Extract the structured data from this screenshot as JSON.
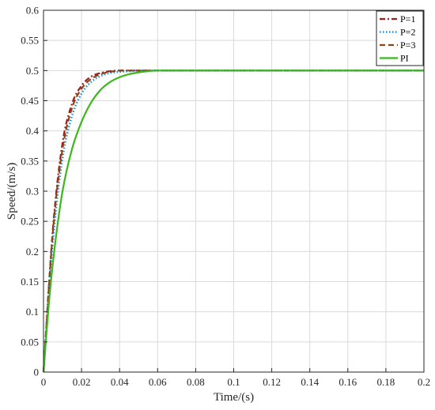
{
  "chart_data": {
    "type": "line",
    "xlabel": "Time/(s)",
    "ylabel": "Speed/(m/s)",
    "xlim": [
      0,
      0.2
    ],
    "ylim": [
      0,
      0.6
    ],
    "xticks": [
      0,
      0.02,
      0.04,
      0.06,
      0.08,
      0.1,
      0.12,
      0.14,
      0.16,
      0.18,
      0.2
    ],
    "xtick_labels": [
      "0",
      "0.02",
      "0.04",
      "0.06",
      "0.08",
      "0.1",
      "0.12",
      "0.14",
      "0.16",
      "0.18",
      "0.2"
    ],
    "yticks": [
      0,
      0.05,
      0.1,
      0.15,
      0.2,
      0.25,
      0.3,
      0.35,
      0.4,
      0.45,
      0.5,
      0.55,
      0.6
    ],
    "ytick_labels": [
      "0",
      "0.05",
      "0.1",
      "0.15",
      "0.2",
      "0.25",
      "0.3",
      "0.35",
      "0.4",
      "0.45",
      "0.5",
      "0.55",
      "0.6"
    ],
    "grid": true,
    "legend_position": "top-right",
    "series": [
      {
        "name": "P=1",
        "color": "#a31a1a",
        "dash": "dashdot",
        "x": [
          0,
          0.005,
          0.01,
          0.015,
          0.02,
          0.025,
          0.03,
          0.035,
          0.04,
          0.045,
          0.05,
          0.06,
          0.07,
          0.08,
          0.1,
          0.12,
          0.15,
          0.2
        ],
        "y": [
          0,
          0.24,
          0.38,
          0.445,
          0.475,
          0.49,
          0.496,
          0.499,
          0.5,
          0.5,
          0.5,
          0.5,
          0.5,
          0.5,
          0.5,
          0.5,
          0.5,
          0.5
        ]
      },
      {
        "name": "P=2",
        "color": "#1f8ed6",
        "dash": "dotted",
        "x": [
          0,
          0.005,
          0.01,
          0.015,
          0.02,
          0.025,
          0.03,
          0.035,
          0.04,
          0.045,
          0.05,
          0.06,
          0.07,
          0.08,
          0.1,
          0.12,
          0.15,
          0.2
        ],
        "y": [
          0,
          0.22,
          0.355,
          0.425,
          0.462,
          0.481,
          0.491,
          0.496,
          0.498,
          0.499,
          0.5,
          0.5,
          0.5,
          0.5,
          0.5,
          0.5,
          0.5,
          0.5
        ]
      },
      {
        "name": "P=3",
        "color": "#8b4513",
        "dash": "dashed",
        "x": [
          0,
          0.005,
          0.01,
          0.015,
          0.02,
          0.025,
          0.03,
          0.035,
          0.04,
          0.045,
          0.05,
          0.06,
          0.07,
          0.08,
          0.1,
          0.12,
          0.15,
          0.2
        ],
        "y": [
          0,
          0.235,
          0.37,
          0.438,
          0.47,
          0.486,
          0.494,
          0.498,
          0.5,
          0.5,
          0.5,
          0.5,
          0.5,
          0.5,
          0.5,
          0.5,
          0.5,
          0.5
        ]
      },
      {
        "name": "PI",
        "color": "#3cb81e",
        "dash": "solid",
        "x": [
          0,
          0.003,
          0.006,
          0.01,
          0.015,
          0.02,
          0.025,
          0.03,
          0.035,
          0.04,
          0.045,
          0.05,
          0.055,
          0.06,
          0.07,
          0.08,
          0.1,
          0.12,
          0.15,
          0.2
        ],
        "y": [
          0,
          0.12,
          0.21,
          0.3,
          0.37,
          0.415,
          0.447,
          0.468,
          0.481,
          0.489,
          0.494,
          0.497,
          0.499,
          0.5,
          0.5,
          0.5,
          0.5,
          0.5,
          0.5,
          0.5
        ]
      }
    ]
  }
}
